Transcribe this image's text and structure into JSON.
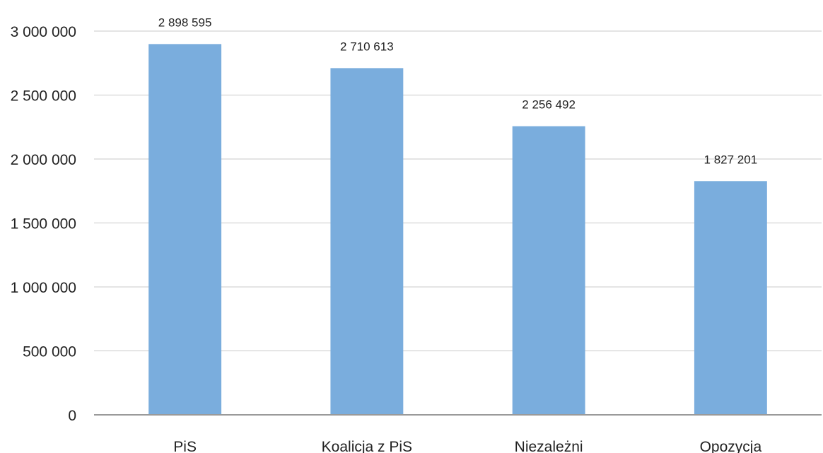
{
  "chart_data": {
    "type": "bar",
    "title": "",
    "xlabel": "",
    "ylabel": "",
    "categories": [
      "PiS",
      "Koalicja z PiS",
      "Niezależni",
      "Opozycja"
    ],
    "values": [
      2898595,
      2710613,
      2256492,
      1827201
    ],
    "value_labels": [
      "2 898 595",
      "2 710 613",
      "2 256 492",
      "1 827 201"
    ],
    "ylim": [
      0,
      3000000
    ],
    "yticks": [
      0,
      500000,
      1000000,
      1500000,
      2000000,
      2500000,
      3000000
    ],
    "ytick_labels": [
      "0",
      "500 000",
      "1 000 000",
      "1 500 000",
      "2 000 000",
      "2 500 000",
      "3 000 000"
    ],
    "grid": true,
    "legend": "none",
    "bar_color": "#7aaddd"
  }
}
